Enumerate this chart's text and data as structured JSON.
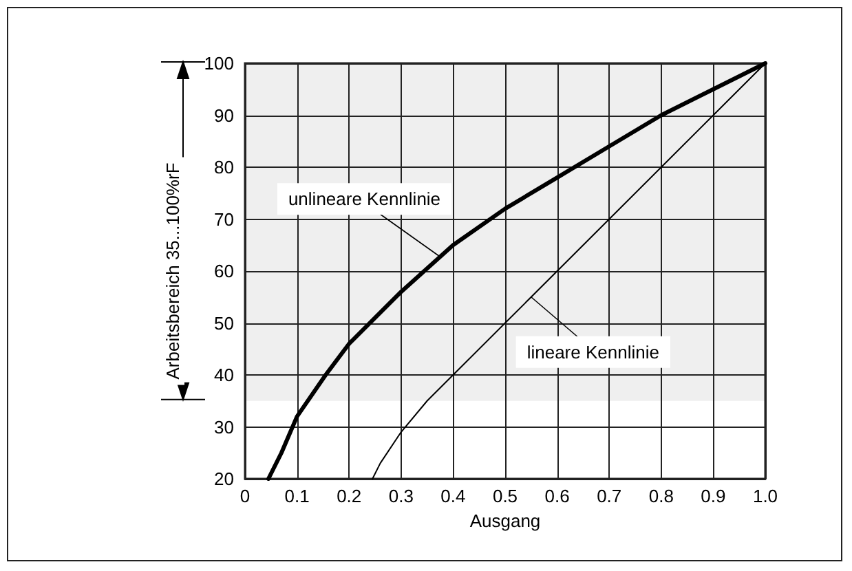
{
  "chart_data": {
    "type": "line",
    "xlabel": "Ausgang",
    "ylabel": "Arbeitsbereich 35...100%rF",
    "series": [
      {
        "name": "unlineare Kennlinie",
        "color": "#000000",
        "x": [
          0.045,
          0.07,
          0.1,
          0.155,
          0.2,
          0.25,
          0.3,
          0.35,
          0.4,
          0.5,
          0.6,
          0.7,
          0.8,
          0.9,
          1.0
        ],
        "values": [
          20,
          25,
          32,
          40,
          46,
          51,
          56,
          60.5,
          65,
          72,
          78,
          84,
          90,
          95,
          100
        ]
      },
      {
        "name": "lineare Kennlinie",
        "color": "#000000",
        "x": [
          0.245,
          0.26,
          0.3,
          0.35,
          0.4,
          0.5,
          0.6,
          0.7,
          0.8,
          0.9,
          1.0
        ],
        "values": [
          20,
          23,
          29,
          35,
          40,
          50,
          60,
          70,
          80,
          90,
          100
        ]
      }
    ],
    "xlim": [
      0,
      1
    ],
    "ylim": [
      20,
      100
    ],
    "xticks": [
      0,
      0.1,
      0.2,
      0.3,
      0.4,
      0.5,
      0.6,
      0.7,
      0.8,
      0.9,
      {
        "value": 1,
        "label": "1.0"
      }
    ],
    "yticks": [
      20,
      30,
      40,
      50,
      60,
      70,
      80,
      90,
      100
    ],
    "bands": [
      {
        "axis": "y",
        "from": 35,
        "to": 100,
        "color": "#efefef"
      }
    ],
    "grid": true,
    "marker": "none",
    "line_style": "solid"
  }
}
